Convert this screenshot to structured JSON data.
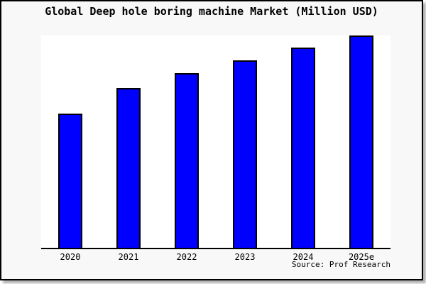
{
  "chart_data": {
    "type": "bar",
    "title": "Global Deep hole boring machine Market (Million USD)",
    "categories": [
      "2020",
      "2021",
      "2022",
      "2023",
      "2024",
      "2025e"
    ],
    "values_relative_pct_of_max": [
      63,
      75,
      82,
      88,
      94,
      100
    ],
    "values_note": "no y-axis scale or data labels visible; values estimated from bar heights relative to tallest bar (2025e = 100)",
    "source": "Source: Prof Research",
    "bar_color": "#0000ff",
    "bar_border_color": "#000000",
    "plot_background": "#ffffff",
    "canvas_background": "#f8f8f8",
    "frame_border_color": "#000000",
    "xlabel": "",
    "ylabel": "",
    "legend": "none",
    "grid": false,
    "y_axis_visible": false
  }
}
